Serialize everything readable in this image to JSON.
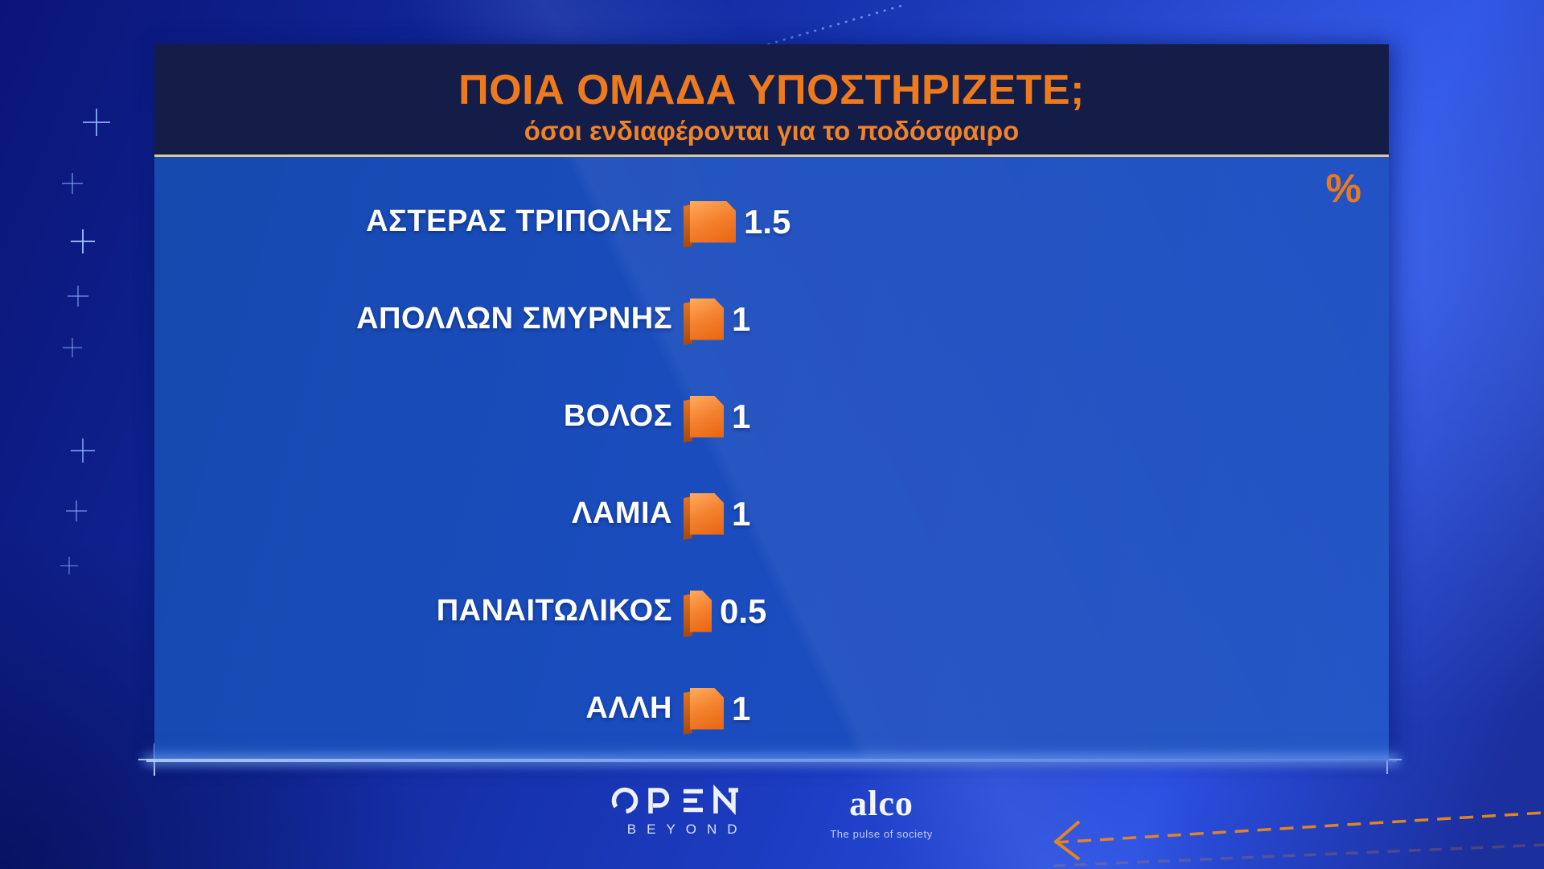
{
  "chart_data": {
    "type": "bar",
    "orientation": "horizontal",
    "title": "ΠΟΙΑ ΟΜΑΔΑ ΥΠΟΣΤΗΡΙΖΕΤΕ;",
    "subtitle": "όσοι ενδιαφέρονται για το ποδόσφαιρο",
    "unit": "%",
    "categories": [
      "ΑΣΤΕΡΑΣ ΤΡΙΠΟΛΗΣ",
      "ΑΠΟΛΛΩΝ ΣΜΥΡΝΗΣ",
      "ΒΟΛΟΣ",
      "ΛΑΜΙΑ",
      "ΠΑΝΑΙΤΩΛΙΚΟΣ",
      "ΑΛΛΗ"
    ],
    "values": [
      1.5,
      1,
      1,
      1,
      0.5,
      1
    ],
    "value_labels": [
      "1.5",
      "1",
      "1",
      "1",
      "0.5",
      "1"
    ],
    "bar_color": "#f07c22",
    "legend": false,
    "gridlines": false
  },
  "footer": {
    "open_wordmark": "OPEN",
    "open_sub": "BEYOND",
    "alco_wordmark": "alco",
    "alco_tagline": "The pulse of society"
  },
  "colors": {
    "accent_orange": "#ee7a1e",
    "bar_orange": "#f07c22",
    "divider_cream": "#d8c8a2",
    "panel_blue": "#1a4cbe",
    "header_navy": "#141d47",
    "text_white": "#ffffff",
    "cross_blue": "#8fb4ff"
  }
}
